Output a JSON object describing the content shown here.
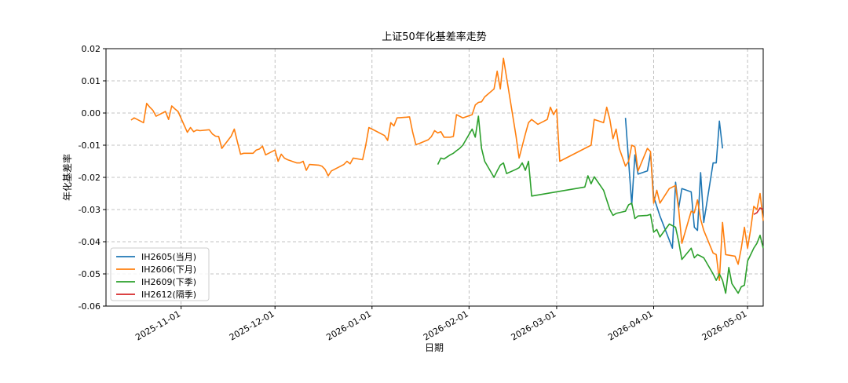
{
  "chart_data": {
    "type": "line",
    "title": "上证50年化基差率走势",
    "xlabel": "日期",
    "ylabel": "年化基差率",
    "xlim": [
      "2025-10-08",
      "2026-05-06"
    ],
    "ylim": [
      -0.06,
      0.02
    ],
    "yticks": [
      -0.06,
      -0.05,
      -0.04,
      -0.03,
      -0.02,
      -0.01,
      0.0,
      0.01,
      0.02
    ],
    "ytick_labels": [
      "-0.06",
      "-0.05",
      "-0.04",
      "-0.03",
      "-0.02",
      "-0.01",
      "0.00",
      "0.01",
      "0.02"
    ],
    "xticks": [
      "2025-11-01",
      "2025-12-01",
      "2026-01-01",
      "2026-02-01",
      "2026-03-01",
      "2026-04-01",
      "2026-05-01"
    ],
    "grid": true,
    "legend_position": "lower-left",
    "series": [
      {
        "name": "IH2605(当月)",
        "color": "#1f77b4",
        "points": [
          [
            "2026-03-23",
            -0.0015
          ],
          [
            "2026-03-25",
            -0.0285
          ],
          [
            "2026-03-26",
            -0.013
          ],
          [
            "2026-03-27",
            -0.019
          ],
          [
            "2026-03-30",
            -0.018
          ],
          [
            "2026-03-31",
            -0.0125
          ],
          [
            "2026-04-01",
            -0.026
          ],
          [
            "2026-04-03",
            -0.032
          ],
          [
            "2026-04-07",
            -0.042
          ],
          [
            "2026-04-08",
            -0.0215
          ],
          [
            "2026-04-09",
            -0.0295
          ],
          [
            "2026-04-10",
            -0.0235
          ],
          [
            "2026-04-13",
            -0.0245
          ],
          [
            "2026-04-14",
            -0.0355
          ],
          [
            "2026-04-15",
            -0.0365
          ],
          [
            "2026-04-16",
            -0.0185
          ],
          [
            "2026-04-17",
            -0.034
          ],
          [
            "2026-04-20",
            -0.0155
          ],
          [
            "2026-04-21",
            -0.0155
          ],
          [
            "2026-04-22",
            -0.0025
          ],
          [
            "2026-04-23",
            -0.011
          ]
        ]
      },
      {
        "name": "IH2606(下月)",
        "color": "#ff7f0e",
        "points": [
          [
            "2025-10-16",
            -0.0022
          ],
          [
            "2025-10-17",
            -0.0015
          ],
          [
            "2025-10-20",
            -0.003
          ],
          [
            "2025-10-21",
            0.003
          ],
          [
            "2025-10-22",
            0.0018
          ],
          [
            "2025-10-23",
            0.0008
          ],
          [
            "2025-10-24",
            -0.001
          ],
          [
            "2025-10-27",
            0.0005
          ],
          [
            "2025-10-28",
            -0.002
          ],
          [
            "2025-10-29",
            0.0022
          ],
          [
            "2025-10-30",
            0.0013
          ],
          [
            "2025-10-31",
            0.0005
          ],
          [
            "2025-11-03",
            -0.006
          ],
          [
            "2025-11-04",
            -0.0045
          ],
          [
            "2025-11-05",
            -0.0058
          ],
          [
            "2025-11-06",
            -0.0053
          ],
          [
            "2025-11-07",
            -0.0055
          ],
          [
            "2025-11-10",
            -0.0052
          ],
          [
            "2025-11-11",
            -0.0065
          ],
          [
            "2025-11-12",
            -0.0072
          ],
          [
            "2025-11-13",
            -0.0073
          ],
          [
            "2025-11-14",
            -0.011
          ],
          [
            "2025-11-17",
            -0.0072
          ],
          [
            "2025-11-18",
            -0.005
          ],
          [
            "2025-11-19",
            -0.009
          ],
          [
            "2025-11-20",
            -0.0128
          ],
          [
            "2025-11-21",
            -0.0125
          ],
          [
            "2025-11-24",
            -0.0125
          ],
          [
            "2025-11-25",
            -0.0115
          ],
          [
            "2025-11-26",
            -0.0112
          ],
          [
            "2025-11-27",
            -0.0103
          ],
          [
            "2025-11-28",
            -0.013
          ],
          [
            "2025-12-01",
            -0.0115
          ],
          [
            "2025-12-02",
            -0.015
          ],
          [
            "2025-12-03",
            -0.0128
          ],
          [
            "2025-12-04",
            -0.014
          ],
          [
            "2025-12-05",
            -0.0145
          ],
          [
            "2025-12-08",
            -0.0155
          ],
          [
            "2025-12-09",
            -0.0155
          ],
          [
            "2025-12-10",
            -0.015
          ],
          [
            "2025-12-11",
            -0.0178
          ],
          [
            "2025-12-12",
            -0.016
          ],
          [
            "2025-12-15",
            -0.0162
          ],
          [
            "2025-12-16",
            -0.0165
          ],
          [
            "2025-12-17",
            -0.0175
          ],
          [
            "2025-12-18",
            -0.0195
          ],
          [
            "2025-12-19",
            -0.018
          ],
          [
            "2025-12-22",
            -0.0165
          ],
          [
            "2025-12-23",
            -0.016
          ],
          [
            "2025-12-24",
            -0.015
          ],
          [
            "2025-12-25",
            -0.0158
          ],
          [
            "2025-12-26",
            -0.014
          ],
          [
            "2025-12-29",
            -0.0145
          ],
          [
            "2025-12-30",
            -0.01
          ],
          [
            "2025-12-31",
            -0.0045
          ],
          [
            "2026-01-02",
            -0.0055
          ],
          [
            "2026-01-05",
            -0.007
          ],
          [
            "2026-01-06",
            -0.0085
          ],
          [
            "2026-01-07",
            -0.003
          ],
          [
            "2026-01-08",
            -0.004
          ],
          [
            "2026-01-09",
            -0.0015
          ],
          [
            "2026-01-12",
            -0.0013
          ],
          [
            "2026-01-13",
            -0.0012
          ],
          [
            "2026-01-14",
            -0.006
          ],
          [
            "2026-01-15",
            -0.0098
          ],
          [
            "2026-01-16",
            -0.0095
          ],
          [
            "2026-01-19",
            -0.0083
          ],
          [
            "2026-01-20",
            -0.0073
          ],
          [
            "2026-01-21",
            -0.0055
          ],
          [
            "2026-01-22",
            -0.0062
          ],
          [
            "2026-01-23",
            -0.0058
          ],
          [
            "2026-01-24",
            -0.0075
          ],
          [
            "2026-01-26",
            -0.0075
          ],
          [
            "2026-01-27",
            -0.0073
          ],
          [
            "2026-01-28",
            -0.0005
          ],
          [
            "2026-01-29",
            -0.001
          ],
          [
            "2026-01-30",
            -0.0015
          ],
          [
            "2026-02-02",
            -0.0005
          ],
          [
            "2026-02-03",
            0.0025
          ],
          [
            "2026-02-04",
            0.0033
          ],
          [
            "2026-02-05",
            0.0035
          ],
          [
            "2026-02-06",
            0.005
          ],
          [
            "2026-02-09",
            0.0075
          ],
          [
            "2026-02-10",
            0.013
          ],
          [
            "2026-02-11",
            0.0075
          ],
          [
            "2026-02-12",
            0.017
          ],
          [
            "2026-02-13",
            0.011
          ],
          [
            "2026-02-16",
            -0.007
          ],
          [
            "2026-02-17",
            -0.014
          ],
          [
            "2026-02-19",
            -0.0065
          ],
          [
            "2026-02-20",
            -0.003
          ],
          [
            "2026-02-21",
            -0.002
          ],
          [
            "2026-02-23",
            -0.0035
          ],
          [
            "2026-02-24",
            -0.003
          ],
          [
            "2026-02-25",
            -0.0025
          ],
          [
            "2026-02-26",
            -0.002
          ],
          [
            "2026-02-27",
            0.0018
          ],
          [
            "2026-02-28",
            -0.0005
          ],
          [
            "2026-03-01",
            0.0012
          ],
          [
            "2026-03-02",
            -0.015
          ],
          [
            "2026-03-12",
            -0.01
          ],
          [
            "2026-03-13",
            -0.002
          ],
          [
            "2026-03-16",
            -0.003
          ],
          [
            "2026-03-17",
            0.0018
          ],
          [
            "2026-03-18",
            -0.002
          ],
          [
            "2026-03-19",
            -0.008
          ],
          [
            "2026-03-20",
            -0.005
          ],
          [
            "2026-03-21",
            -0.011
          ],
          [
            "2026-03-23",
            -0.0165
          ],
          [
            "2026-03-24",
            -0.015
          ],
          [
            "2026-03-25",
            -0.01
          ],
          [
            "2026-03-26",
            -0.0105
          ],
          [
            "2026-03-27",
            -0.018
          ],
          [
            "2026-03-30",
            -0.011
          ],
          [
            "2026-03-31",
            -0.012
          ],
          [
            "2026-04-01",
            -0.028
          ],
          [
            "2026-04-02",
            -0.024
          ],
          [
            "2026-04-03",
            -0.028
          ],
          [
            "2026-04-06",
            -0.0235
          ],
          [
            "2026-04-07",
            -0.023
          ],
          [
            "2026-04-08",
            -0.0225
          ],
          [
            "2026-04-09",
            -0.03
          ],
          [
            "2026-04-10",
            -0.0405
          ],
          [
            "2026-04-13",
            -0.0305
          ],
          [
            "2026-04-14",
            -0.031
          ],
          [
            "2026-04-15",
            -0.027
          ],
          [
            "2026-04-16",
            -0.033
          ],
          [
            "2026-04-17",
            -0.0365
          ],
          [
            "2026-04-20",
            -0.0435
          ],
          [
            "2026-04-21",
            -0.044
          ],
          [
            "2026-04-22",
            -0.052
          ],
          [
            "2026-04-23",
            -0.034
          ],
          [
            "2026-04-24",
            -0.044
          ],
          [
            "2026-04-27",
            -0.0445
          ],
          [
            "2026-04-28",
            -0.047
          ],
          [
            "2026-04-29",
            -0.042
          ],
          [
            "2026-04-30",
            -0.0355
          ],
          [
            "2026-05-01",
            -0.042
          ],
          [
            "2026-05-02",
            -0.036
          ],
          [
            "2026-05-03",
            -0.029
          ],
          [
            "2026-05-04",
            -0.03
          ],
          [
            "2026-05-05",
            -0.025
          ],
          [
            "2026-05-06",
            -0.0335
          ]
        ]
      },
      {
        "name": "IH2609(下季)",
        "color": "#2ca02c",
        "points": [
          [
            "2026-01-22",
            -0.016
          ],
          [
            "2026-01-23",
            -0.014
          ],
          [
            "2026-01-24",
            -0.0143
          ],
          [
            "2026-01-26",
            -0.013
          ],
          [
            "2026-01-27",
            -0.0125
          ],
          [
            "2026-01-28",
            -0.0117
          ],
          [
            "2026-01-29",
            -0.011
          ],
          [
            "2026-01-30",
            -0.01
          ],
          [
            "2026-02-02",
            -0.005
          ],
          [
            "2026-02-03",
            -0.0075
          ],
          [
            "2026-02-04",
            -0.001
          ],
          [
            "2026-02-05",
            -0.011
          ],
          [
            "2026-02-06",
            -0.015
          ],
          [
            "2026-02-09",
            -0.02
          ],
          [
            "2026-02-10",
            -0.018
          ],
          [
            "2026-02-11",
            -0.0162
          ],
          [
            "2026-02-12",
            -0.0155
          ],
          [
            "2026-02-13",
            -0.0188
          ],
          [
            "2026-02-16",
            -0.0175
          ],
          [
            "2026-02-17",
            -0.017
          ],
          [
            "2026-02-18",
            -0.0155
          ],
          [
            "2026-02-19",
            -0.0178
          ],
          [
            "2026-02-20",
            -0.015
          ],
          [
            "2026-02-21",
            -0.0258
          ],
          [
            "2026-03-10",
            -0.023
          ],
          [
            "2026-03-11",
            -0.0195
          ],
          [
            "2026-03-12",
            -0.022
          ],
          [
            "2026-03-13",
            -0.0198
          ],
          [
            "2026-03-16",
            -0.024
          ],
          [
            "2026-03-17",
            -0.027
          ],
          [
            "2026-03-18",
            -0.03
          ],
          [
            "2026-03-19",
            -0.0318
          ],
          [
            "2026-03-20",
            -0.0312
          ],
          [
            "2026-03-23",
            -0.0305
          ],
          [
            "2026-03-24",
            -0.0285
          ],
          [
            "2026-03-25",
            -0.028
          ],
          [
            "2026-03-26",
            -0.0328
          ],
          [
            "2026-03-27",
            -0.032
          ],
          [
            "2026-03-30",
            -0.0318
          ],
          [
            "2026-03-31",
            -0.0315
          ],
          [
            "2026-04-01",
            -0.037
          ],
          [
            "2026-04-02",
            -0.0362
          ],
          [
            "2026-04-03",
            -0.0385
          ],
          [
            "2026-04-06",
            -0.0345
          ],
          [
            "2026-04-07",
            -0.035
          ],
          [
            "2026-04-08",
            -0.0355
          ],
          [
            "2026-04-09",
            -0.04
          ],
          [
            "2026-04-10",
            -0.0455
          ],
          [
            "2026-04-13",
            -0.042
          ],
          [
            "2026-04-14",
            -0.045
          ],
          [
            "2026-04-15",
            -0.044
          ],
          [
            "2026-04-16",
            -0.0445
          ],
          [
            "2026-04-17",
            -0.045
          ],
          [
            "2026-04-20",
            -0.05
          ],
          [
            "2026-04-21",
            -0.052
          ],
          [
            "2026-04-22",
            -0.05
          ],
          [
            "2026-04-23",
            -0.052
          ],
          [
            "2026-04-24",
            -0.056
          ],
          [
            "2026-04-25",
            -0.048
          ],
          [
            "2026-04-26",
            -0.053
          ],
          [
            "2026-04-27",
            -0.0545
          ],
          [
            "2026-04-28",
            -0.056
          ],
          [
            "2026-04-29",
            -0.054
          ],
          [
            "2026-04-30",
            -0.0535
          ],
          [
            "2026-05-01",
            -0.046
          ],
          [
            "2026-05-02",
            -0.044
          ],
          [
            "2026-05-03",
            -0.042
          ],
          [
            "2026-05-04",
            -0.0405
          ],
          [
            "2026-05-05",
            -0.038
          ],
          [
            "2026-05-06",
            -0.042
          ]
        ]
      },
      {
        "name": "IH2612(隔季)",
        "color": "#d62728",
        "points": [
          [
            "2026-05-03",
            -0.0315
          ],
          [
            "2026-05-04",
            -0.031
          ],
          [
            "2026-05-05",
            -0.0295
          ],
          [
            "2026-05-06",
            -0.03
          ]
        ]
      }
    ]
  }
}
